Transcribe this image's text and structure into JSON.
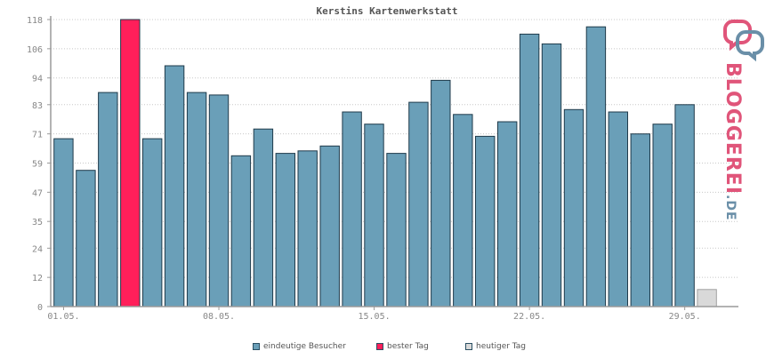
{
  "chart_data": {
    "type": "bar",
    "title": "Kerstins Kartenwerkstatt",
    "categories": [
      "01.05.",
      "02.05.",
      "03.05.",
      "04.05.",
      "05.05.",
      "06.05.",
      "07.05.",
      "08.05.",
      "09.05.",
      "10.05.",
      "11.05.",
      "12.05.",
      "13.05.",
      "14.05.",
      "15.05.",
      "16.05.",
      "17.05.",
      "18.05.",
      "19.05.",
      "20.05.",
      "21.05.",
      "22.05.",
      "23.05.",
      "24.05.",
      "25.05.",
      "26.05.",
      "27.05.",
      "28.05.",
      "29.05.",
      "30.05."
    ],
    "xtick_labels": [
      "01.05.",
      "08.05.",
      "15.05.",
      "22.05.",
      "29.05."
    ],
    "xtick_indices": [
      0,
      7,
      14,
      21,
      28
    ],
    "series": [
      {
        "name": "eindeutige Besucher",
        "values": [
          69,
          56,
          88,
          118,
          69,
          99,
          88,
          87,
          62,
          73,
          63,
          64,
          66,
          80,
          75,
          63,
          84,
          93,
          79,
          70,
          76,
          112,
          108,
          81,
          115,
          80,
          71,
          75,
          83,
          7
        ]
      }
    ],
    "best_day_index": 3,
    "today_index": 29,
    "yticks": [
      0,
      12,
      24,
      35,
      47,
      59,
      71,
      83,
      94,
      106,
      118
    ],
    "ylim": [
      0,
      118
    ],
    "grid": true,
    "legend": [
      {
        "label": "eindeutige Besucher",
        "color": "#6a9fb8"
      },
      {
        "label": "bester Tag",
        "color": "#ff1f5a"
      },
      {
        "label": "heutiger Tag",
        "color": "#d9d9d9"
      }
    ]
  },
  "branding": {
    "name": "BLOGGEREI",
    "tld": ".DE"
  },
  "colors": {
    "bar": "#6a9fb8",
    "best": "#ff1f5a",
    "today": "#d9d9d9",
    "bar_stroke": "#1f3a4a",
    "grid": "#c8c8c8",
    "axis": "#9a9a9a",
    "text": "#888888",
    "title": "#555555"
  }
}
